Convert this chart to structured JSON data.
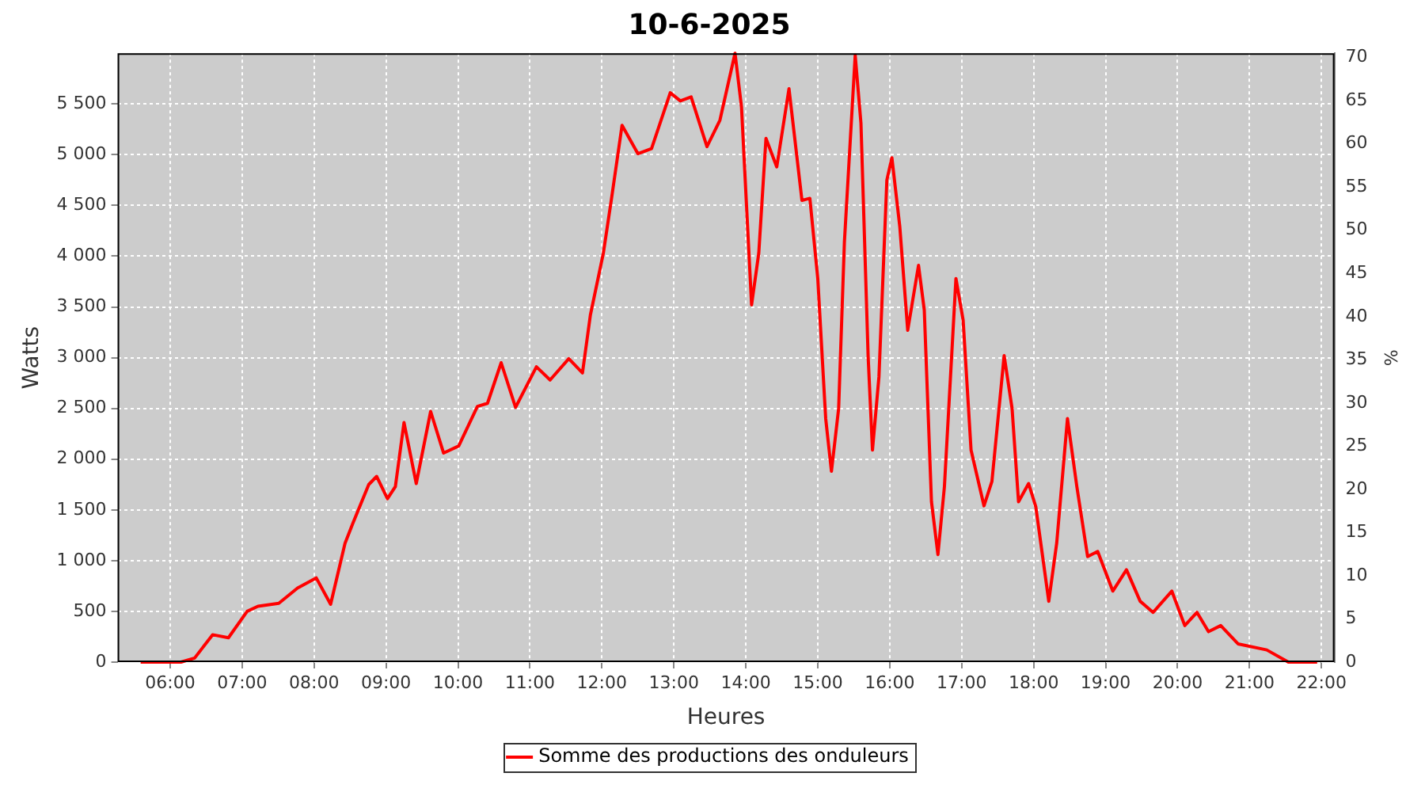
{
  "chart_data": {
    "type": "line",
    "title": "10-6-2025",
    "xlabel": "Heures",
    "ylabel": "Watts",
    "y2label": "%",
    "x": [
      5.59,
      6.15,
      6.34,
      6.59,
      6.81,
      7.07,
      7.22,
      7.51,
      7.77,
      8.03,
      8.23,
      8.43,
      8.54,
      8.76,
      8.87,
      9.02,
      9.13,
      9.25,
      9.42,
      9.62,
      9.8,
      10.01,
      10.27,
      10.41,
      10.6,
      10.8,
      11.09,
      11.28,
      11.54,
      11.73,
      11.84,
      12.02,
      12.13,
      12.28,
      12.5,
      12.69,
      12.95,
      13.09,
      13.24,
      13.46,
      13.64,
      13.85,
      13.94,
      14.08,
      14.18,
      14.28,
      14.43,
      14.6,
      14.78,
      14.89,
      15.0,
      15.11,
      15.19,
      15.29,
      15.37,
      15.52,
      15.6,
      15.7,
      15.76,
      15.85,
      15.96,
      16.03,
      16.14,
      16.25,
      16.4,
      16.48,
      16.58,
      16.67,
      16.76,
      16.92,
      17.02,
      17.13,
      17.31,
      17.42,
      17.59,
      17.7,
      17.79,
      17.93,
      18.03,
      18.21,
      18.32,
      18.47,
      18.6,
      18.75,
      18.89,
      19.1,
      19.29,
      19.48,
      19.66,
      19.92,
      20.1,
      20.27,
      20.43,
      20.6,
      20.84,
      21.24,
      21.54,
      21.94
    ],
    "series": [
      {
        "name": "Somme des productions des onduleurs",
        "color": "#ff0000",
        "values": [
          0,
          0,
          40,
          270,
          240,
          500,
          550,
          580,
          730,
          830,
          570,
          1170,
          1370,
          1750,
          1830,
          1610,
          1730,
          2360,
          1760,
          2470,
          2060,
          2130,
          2520,
          2550,
          2950,
          2510,
          2910,
          2780,
          2990,
          2850,
          3420,
          4030,
          4550,
          5290,
          5010,
          5060,
          5610,
          5530,
          5570,
          5080,
          5340,
          6000,
          5470,
          3520,
          4030,
          5160,
          4880,
          5650,
          4550,
          4570,
          3780,
          2400,
          1880,
          2500,
          4140,
          5980,
          5310,
          3010,
          2090,
          2810,
          4750,
          4970,
          4290,
          3270,
          3910,
          3470,
          1580,
          1060,
          1730,
          3780,
          3370,
          2090,
          1540,
          1780,
          3020,
          2500,
          1580,
          1760,
          1530,
          600,
          1170,
          2400,
          1730,
          1040,
          1090,
          700,
          910,
          600,
          490,
          700,
          360,
          490,
          300,
          360,
          180,
          120,
          0,
          0
        ]
      }
    ],
    "xlim": [
      5.27,
      22.18
    ],
    "xticks": [
      {
        "value": 6,
        "label": "06:00"
      },
      {
        "value": 7,
        "label": "07:00"
      },
      {
        "value": 8,
        "label": "08:00"
      },
      {
        "value": 9,
        "label": "09:00"
      },
      {
        "value": 10,
        "label": "10:00"
      },
      {
        "value": 11,
        "label": "11:00"
      },
      {
        "value": 12,
        "label": "12:00"
      },
      {
        "value": 13,
        "label": "13:00"
      },
      {
        "value": 14,
        "label": "14:00"
      },
      {
        "value": 15,
        "label": "15:00"
      },
      {
        "value": 16,
        "label": "16:00"
      },
      {
        "value": 17,
        "label": "17:00"
      },
      {
        "value": 18,
        "label": "18:00"
      },
      {
        "value": 19,
        "label": "19:00"
      },
      {
        "value": 20,
        "label": "20:00"
      },
      {
        "value": 21,
        "label": "21:00"
      },
      {
        "value": 22,
        "label": "22:00"
      }
    ],
    "ylim": [
      0,
      6000
    ],
    "yticks": [
      0,
      500,
      {
        "value": 1000,
        "label": "1 000"
      },
      {
        "value": 1500,
        "label": "1 500"
      },
      {
        "value": 2000,
        "label": "2 000"
      },
      {
        "value": 2500,
        "label": "2 500"
      },
      {
        "value": 3000,
        "label": "3 000"
      },
      {
        "value": 3500,
        "label": "3 500"
      },
      {
        "value": 4000,
        "label": "4 000"
      },
      {
        "value": 4500,
        "label": "4 500"
      },
      {
        "value": 5000,
        "label": "5 000"
      },
      {
        "value": 5500,
        "label": "5 500"
      }
    ],
    "y2lim": [
      0,
      70.5
    ],
    "y2ticks": [
      0,
      5,
      10,
      15,
      20,
      25,
      30,
      35,
      40,
      45,
      50,
      55,
      60,
      65,
      70
    ],
    "grid": true,
    "legend": "bottom",
    "marker": "none",
    "line_style": "solid"
  }
}
